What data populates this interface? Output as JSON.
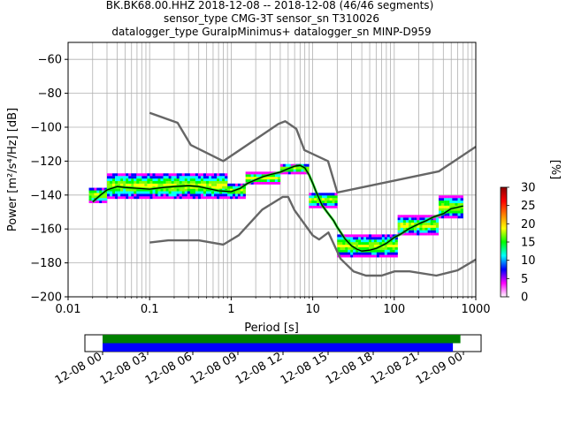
{
  "title_lines": [
    "BK.BK68.00.HHZ   2018-12-08 -- 2018-12-08  (46/46 segments)",
    "sensor_type CMG-3T sensor_sn T310026",
    "datalogger_type GuralpMinimus+ datalogger_sn MINP-D959"
  ],
  "chart_data": {
    "type": "heatmap",
    "xlabel": "Period [s]",
    "ylabel": "Power [m²/s⁴/Hz] [dB]",
    "xscale": "log",
    "xlim": [
      0.01,
      1000
    ],
    "ylim": [
      -200,
      -50
    ],
    "grid": true,
    "x_ticks": [
      {
        "value": 0.01,
        "label": "0.01"
      },
      {
        "value": 0.1,
        "label": "0.1"
      },
      {
        "value": 1,
        "label": "1"
      },
      {
        "value": 10,
        "label": "10"
      },
      {
        "value": 100,
        "label": "100"
      },
      {
        "value": 1000,
        "label": "1000"
      }
    ],
    "y_ticks": [
      -60,
      -80,
      -100,
      -120,
      -140,
      -160,
      -180,
      -200
    ],
    "colorbar": {
      "label": "[%]",
      "range": [
        0,
        30
      ],
      "ticks": [
        0,
        5,
        10,
        15,
        20,
        25,
        30
      ],
      "colors": [
        "#ffffff",
        "#ff00ff",
        "#0000ff",
        "#00ffff",
        "#00ff00",
        "#ffff00",
        "#ff7f00",
        "#ff0000",
        "#8b0000"
      ]
    },
    "model_curves": [
      {
        "role": "new-high-noise-model",
        "color": "#666666",
        "points": [
          [
            0.1,
            -91.5
          ],
          [
            0.22,
            -97.4
          ],
          [
            0.32,
            -110.5
          ],
          [
            0.8,
            -120
          ],
          [
            3.8,
            -98
          ],
          [
            4.6,
            -96.5
          ],
          [
            6.3,
            -101
          ],
          [
            7.9,
            -113.5
          ],
          [
            15.4,
            -120
          ],
          [
            20,
            -138.5
          ],
          [
            354,
            -126
          ],
          [
            1000,
            -111.5
          ]
        ]
      },
      {
        "role": "new-low-noise-model",
        "color": "#666666",
        "points": [
          [
            0.1,
            -168
          ],
          [
            0.17,
            -166.7
          ],
          [
            0.4,
            -166.7
          ],
          [
            0.8,
            -169.2
          ],
          [
            1.24,
            -163.7
          ],
          [
            2.4,
            -148.6
          ],
          [
            4.3,
            -141.1
          ],
          [
            5,
            -141.1
          ],
          [
            6,
            -149
          ],
          [
            10,
            -163.8
          ],
          [
            12,
            -166.2
          ],
          [
            15.6,
            -162.1
          ],
          [
            21.9,
            -177.5
          ],
          [
            31.6,
            -185
          ],
          [
            45,
            -187.5
          ],
          [
            70,
            -187.5
          ],
          [
            101,
            -185
          ],
          [
            154,
            -185
          ],
          [
            328,
            -187.5
          ],
          [
            600,
            -184.4
          ],
          [
            1000,
            -178
          ]
        ]
      }
    ],
    "median_curve": {
      "color": "#000000",
      "points": [
        [
          0.02,
          -144
        ],
        [
          0.025,
          -140
        ],
        [
          0.03,
          -137
        ],
        [
          0.04,
          -135
        ],
        [
          0.05,
          -135.5
        ],
        [
          0.07,
          -136
        ],
        [
          0.1,
          -136.5
        ],
        [
          0.15,
          -135.5
        ],
        [
          0.2,
          -135
        ],
        [
          0.3,
          -134.5
        ],
        [
          0.4,
          -135
        ],
        [
          0.5,
          -136
        ],
        [
          0.7,
          -137.5
        ],
        [
          1,
          -138
        ],
        [
          1.3,
          -136
        ],
        [
          1.6,
          -133
        ],
        [
          2,
          -131
        ],
        [
          2.5,
          -129
        ],
        [
          3,
          -128
        ],
        [
          4,
          -126.5
        ],
        [
          5,
          -124.5
        ],
        [
          6,
          -123
        ],
        [
          7,
          -122.5
        ],
        [
          8,
          -124
        ],
        [
          9,
          -128
        ],
        [
          10,
          -133
        ],
        [
          11,
          -138
        ],
        [
          13,
          -146
        ],
        [
          15,
          -150
        ],
        [
          18,
          -155
        ],
        [
          20,
          -159
        ],
        [
          25,
          -166
        ],
        [
          30,
          -170
        ],
        [
          35,
          -172
        ],
        [
          40,
          -173
        ],
        [
          50,
          -172.5
        ],
        [
          60,
          -171.5
        ],
        [
          80,
          -168.5
        ],
        [
          100,
          -165
        ],
        [
          120,
          -163
        ],
        [
          150,
          -160
        ],
        [
          200,
          -157
        ],
        [
          250,
          -155
        ],
        [
          300,
          -153
        ],
        [
          400,
          -151
        ],
        [
          500,
          -148
        ],
        [
          700,
          -146.5
        ]
      ]
    },
    "density_bands": [
      {
        "x0": 0.018,
        "x1": 0.03,
        "y_center": -140,
        "half_width": 4
      },
      {
        "x0": 0.03,
        "x1": 0.9,
        "y_center": -134.5,
        "half_width": 7
      },
      {
        "x0": 0.9,
        "x1": 1.5,
        "y_center": -137.5,
        "half_width": 4
      },
      {
        "x0": 1.5,
        "x1": 4,
        "y_center": -130,
        "half_width": 3
      },
      {
        "x0": 4,
        "x1": 9,
        "y_center": -124.5,
        "half_width": 2.5
      },
      {
        "x0": 9,
        "x1": 20,
        "y_center": -143,
        "half_width": 4
      },
      {
        "x0": 20,
        "x1": 110,
        "y_center": -170,
        "half_width": 6
      },
      {
        "x0": 110,
        "x1": 350,
        "y_center": -158,
        "half_width": 5
      },
      {
        "x0": 350,
        "x1": 700,
        "y_center": -147,
        "half_width": 6
      }
    ],
    "timeline": {
      "start": "12-08 00",
      "end": "12-09 00",
      "tick_labels": [
        "12-08 00",
        "12-08 03",
        "12-08 06",
        "12-08 09",
        "12-08 12",
        "12-08 15",
        "12-08 18",
        "12-08 21",
        "12-09 00"
      ],
      "bars": [
        {
          "color": "#008000",
          "start_hour": 0,
          "end_hour": 23.8
        },
        {
          "color": "#0000ff",
          "start_hour": 0,
          "end_hour": 23.3
        }
      ]
    }
  }
}
